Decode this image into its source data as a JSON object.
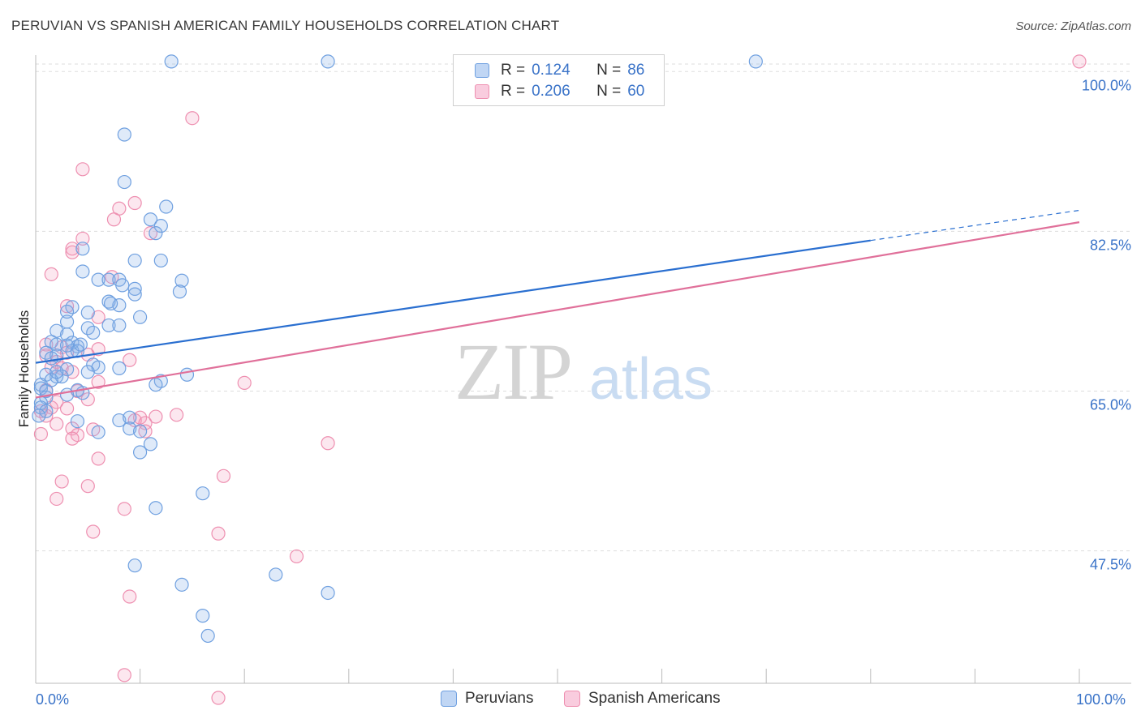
{
  "title": "PERUVIAN VS SPANISH AMERICAN FAMILY HOUSEHOLDS CORRELATION CHART",
  "source": "Source: ZipAtlas.com",
  "watermark": {
    "zip": "ZIP",
    "atlas": "atlas"
  },
  "colors": {
    "blue": "#6fa0e0",
    "blue_fill": "rgba(140,180,235,0.28)",
    "blue_line": "#2a6fd0",
    "pink": "#ee8fb0",
    "pink_fill": "rgba(245,160,190,0.25)",
    "pink_line": "#e0709a",
    "accent_text": "#3a73c8",
    "grid": "#dddddd"
  },
  "legend_top": [
    {
      "r_label": "R =",
      "r_value": "0.124",
      "n_label": "N =",
      "n_value": "86"
    },
    {
      "r_label": "R =",
      "r_value": "0.206",
      "n_label": "N =",
      "n_value": "60"
    }
  ],
  "chart_data": {
    "type": "scatter",
    "title": "PERUVIAN VS SPANISH AMERICAN FAMILY HOUSEHOLDS CORRELATION CHART",
    "xlabel": "",
    "ylabel": "Family Households",
    "xlim": [
      0,
      100
    ],
    "ylim": [
      33,
      101.8
    ],
    "x_tick_labels": [
      "0.0%",
      "100.0%"
    ],
    "y_ticks": [
      47.5,
      65.0,
      82.5,
      100.0
    ],
    "y_tick_labels": [
      "47.5%",
      "65.0%",
      "82.5%",
      "100.0%"
    ],
    "grid": true,
    "legend_position": "top-center",
    "series": [
      {
        "name": "Peruvians",
        "trend": {
          "x0": 0,
          "y0": 68.1,
          "x1": 80,
          "y1": 81.5,
          "dash_x1": 100,
          "dash_y1": 84.8
        },
        "points": [
          [
            13,
            101.1
          ],
          [
            28,
            101.1
          ],
          [
            69,
            101.1
          ],
          [
            8.5,
            93.1
          ],
          [
            8.5,
            87.9
          ],
          [
            12.5,
            85.2
          ],
          [
            11,
            83.8
          ],
          [
            12,
            83.1
          ],
          [
            11.5,
            82.3
          ],
          [
            4.5,
            80.6
          ],
          [
            9.5,
            79.3
          ],
          [
            12,
            79.3
          ],
          [
            4.5,
            78.1
          ],
          [
            6,
            77.2
          ],
          [
            7,
            77.2
          ],
          [
            8,
            77.2
          ],
          [
            14,
            77.1
          ],
          [
            9.5,
            76.2
          ],
          [
            9.5,
            75.6
          ],
          [
            7,
            74.8
          ],
          [
            8,
            74.4
          ],
          [
            3.5,
            74.2
          ],
          [
            3,
            73.7
          ],
          [
            5,
            73.6
          ],
          [
            10,
            73.1
          ],
          [
            3,
            72.6
          ],
          [
            5,
            71.9
          ],
          [
            7,
            72.2
          ],
          [
            8,
            72.2
          ],
          [
            2,
            71.6
          ],
          [
            3,
            71.2
          ],
          [
            5.5,
            71.4
          ],
          [
            1.5,
            70.4
          ],
          [
            3.5,
            70.3
          ],
          [
            2,
            70.1
          ],
          [
            4,
            69.9
          ],
          [
            3.5,
            69.4
          ],
          [
            4,
            69.4
          ],
          [
            1,
            69.2
          ],
          [
            2,
            68.9
          ],
          [
            1.5,
            68.6
          ],
          [
            5.5,
            67.9
          ],
          [
            6,
            67.6
          ],
          [
            8,
            67.5
          ],
          [
            3,
            67.4
          ],
          [
            2,
            66.6
          ],
          [
            5,
            67.1
          ],
          [
            1,
            66.8
          ],
          [
            2.5,
            66.6
          ],
          [
            1.5,
            66.2
          ],
          [
            14.5,
            66.8
          ],
          [
            12,
            66.1
          ],
          [
            11.5,
            65.7
          ],
          [
            0.5,
            65.7
          ],
          [
            0.5,
            65.3
          ],
          [
            1,
            65.0
          ],
          [
            4,
            65.1
          ],
          [
            4.5,
            64.8
          ],
          [
            3,
            64.6
          ],
          [
            1,
            64.3
          ],
          [
            0.5,
            63.7
          ],
          [
            0.5,
            63.2
          ],
          [
            1,
            62.8
          ],
          [
            8,
            61.8
          ],
          [
            9,
            62.1
          ],
          [
            4,
            61.7
          ],
          [
            9,
            60.9
          ],
          [
            10,
            60.6
          ],
          [
            6,
            60.5
          ],
          [
            11,
            59.2
          ],
          [
            10,
            58.3
          ],
          [
            16,
            53.8
          ],
          [
            11.5,
            52.2
          ],
          [
            9.5,
            45.9
          ],
          [
            14,
            43.8
          ],
          [
            23,
            44.9
          ],
          [
            28,
            42.9
          ],
          [
            16,
            40.4
          ],
          [
            16.5,
            38.2
          ],
          [
            0.3,
            62.3
          ],
          [
            2,
            67.1
          ],
          [
            3,
            70.0
          ],
          [
            4.3,
            70.1
          ],
          [
            7.2,
            74.6
          ],
          [
            8.3,
            76.6
          ],
          [
            13.8,
            75.9
          ]
        ]
      },
      {
        "name": "Spanish Americans",
        "trend": {
          "x0": 0,
          "y0": 64.3,
          "x1": 100,
          "y1": 83.5
        },
        "points": [
          [
            100,
            101.1
          ],
          [
            15,
            94.9
          ],
          [
            4.5,
            89.3
          ],
          [
            9.5,
            85.6
          ],
          [
            8,
            85.0
          ],
          [
            7.5,
            83.8
          ],
          [
            11,
            82.3
          ],
          [
            4.5,
            81.7
          ],
          [
            3.5,
            80.6
          ],
          [
            3.5,
            80.2
          ],
          [
            1.5,
            77.8
          ],
          [
            3,
            74.3
          ],
          [
            6,
            73.1
          ],
          [
            1,
            70.1
          ],
          [
            2.5,
            69.8
          ],
          [
            6,
            69.6
          ],
          [
            3,
            69.2
          ],
          [
            5,
            69.0
          ],
          [
            1,
            68.9
          ],
          [
            9,
            68.4
          ],
          [
            2,
            68.2
          ],
          [
            1.5,
            67.6
          ],
          [
            2.5,
            67.5
          ],
          [
            3.5,
            67.1
          ],
          [
            6,
            66.0
          ],
          [
            20,
            65.9
          ],
          [
            1,
            65.1
          ],
          [
            4,
            65.0
          ],
          [
            5,
            64.1
          ],
          [
            2,
            63.8
          ],
          [
            1.5,
            63.2
          ],
          [
            3,
            63.1
          ],
          [
            0.5,
            62.8
          ],
          [
            1,
            62.3
          ],
          [
            13.5,
            62.4
          ],
          [
            11.5,
            62.2
          ],
          [
            10,
            62.1
          ],
          [
            9.5,
            61.8
          ],
          [
            10.5,
            61.5
          ],
          [
            2,
            61.4
          ],
          [
            3.5,
            60.9
          ],
          [
            5.5,
            60.8
          ],
          [
            10.5,
            60.6
          ],
          [
            0.5,
            60.3
          ],
          [
            4,
            60.2
          ],
          [
            3.5,
            59.8
          ],
          [
            28,
            59.3
          ],
          [
            6,
            57.6
          ],
          [
            18,
            55.7
          ],
          [
            2.5,
            55.1
          ],
          [
            5,
            54.6
          ],
          [
            2,
            53.2
          ],
          [
            8.5,
            52.1
          ],
          [
            5.5,
            49.6
          ],
          [
            17.5,
            49.4
          ],
          [
            25,
            46.9
          ],
          [
            9,
            42.5
          ],
          [
            8.5,
            33.9
          ],
          [
            17.5,
            31.4
          ],
          [
            7.3,
            77.5
          ]
        ]
      }
    ]
  },
  "bottom_legend": [
    {
      "label": "Peruvians"
    },
    {
      "label": "Spanish Americans"
    }
  ]
}
